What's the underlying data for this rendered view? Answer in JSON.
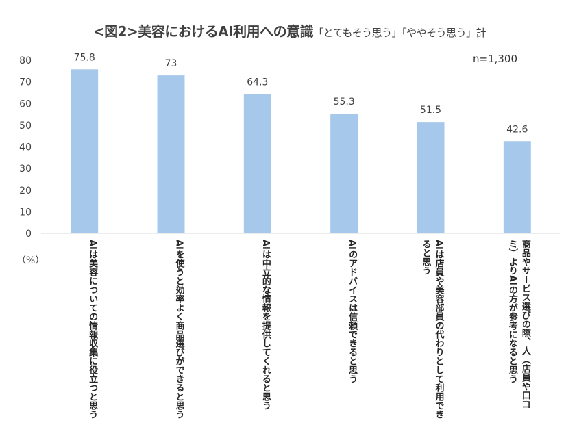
{
  "chart_data": {
    "type": "bar",
    "title": "<図2>美容におけるAI利用への意識",
    "subtitle": "「とてもそう思う」「ややそう思う」計",
    "sample_note": "n=1,300",
    "unit_label": "（%）",
    "categories": [
      "AIは美容についての情報収集に役立つと思う",
      "AIを使うと効率よく商品選びができると思う",
      "AIは中立的な情報を提供してくれると思う",
      "AIのアドバイスは信頼できると思う",
      "AIは店員や美容部員の代わりとして利用できると思う",
      "商品やサービス選びの際、人（店員や口コミ）よりAIの方が参考になると思う"
    ],
    "values": [
      75.8,
      73,
      64.3,
      55.3,
      51.5,
      42.6
    ],
    "value_labels": [
      "75.8",
      "73",
      "64.3",
      "55.3",
      "51.5",
      "42.6"
    ],
    "ylim": [
      0,
      80
    ],
    "yticks": [
      0,
      10,
      20,
      30,
      40,
      50,
      60,
      70,
      80
    ],
    "grid": false,
    "bar_color": "#a6c8eb"
  }
}
